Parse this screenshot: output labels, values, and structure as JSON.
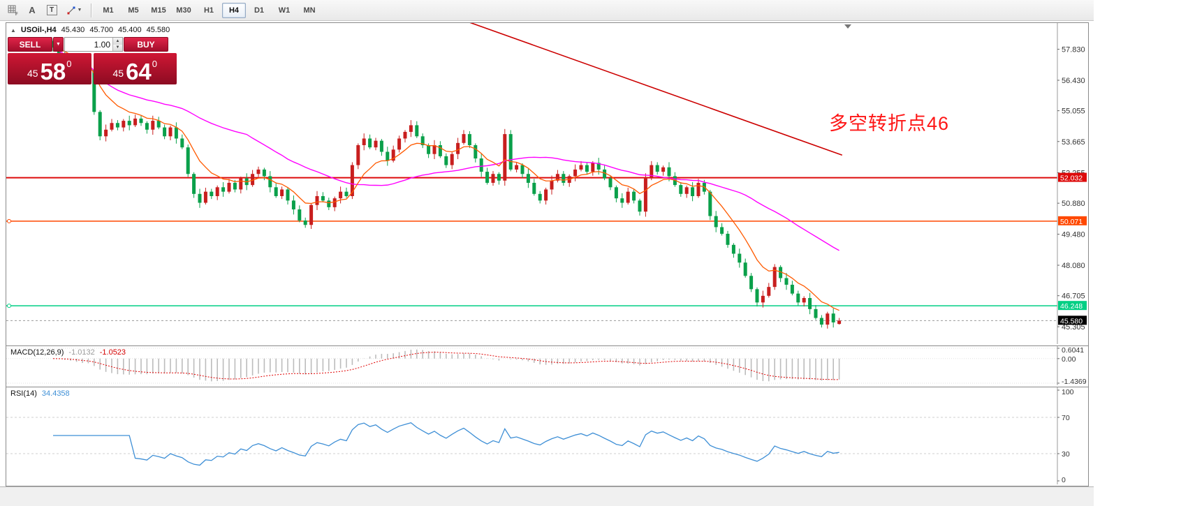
{
  "toolbar": {
    "tools": {
      "a_label": "A",
      "t_label": "T"
    },
    "timeframes": [
      {
        "label": "M1",
        "active": false
      },
      {
        "label": "M5",
        "active": false
      },
      {
        "label": "M15",
        "active": false
      },
      {
        "label": "M30",
        "active": false
      },
      {
        "label": "H1",
        "active": false
      },
      {
        "label": "H4",
        "active": true
      },
      {
        "label": "D1",
        "active": false
      },
      {
        "label": "W1",
        "active": false
      },
      {
        "label": "MN",
        "active": false
      }
    ]
  },
  "trade_panel": {
    "sell_label": "SELL",
    "buy_label": "BUY",
    "volume": "1.00",
    "sell_price": {
      "base": "45",
      "big": "58",
      "sup": "0"
    },
    "buy_price": {
      "base": "45",
      "big": "64",
      "sup": "0"
    }
  },
  "chart_data": {
    "type": "candlestick",
    "header": {
      "symbol": "USOil-,H4",
      "open": "45.430",
      "high": "45.700",
      "low": "45.400",
      "close": "45.580"
    },
    "annotation": {
      "text": "多空转折点46",
      "color": "#fe1616"
    },
    "price_range": [
      44.71,
      58.95
    ],
    "axis_labels": [
      "57.830",
      "56.430",
      "55.055",
      "53.665",
      "52.255",
      "50.880",
      "49.480",
      "48.080",
      "46.705",
      "45.305"
    ],
    "levels": [
      {
        "price": 52.032,
        "label": "52.032",
        "color": "#dd0a0a",
        "width": 2,
        "anchor": false
      },
      {
        "price": 50.071,
        "label": "50.071",
        "color": "#ff4800",
        "width": 1.5,
        "anchor": true
      },
      {
        "price": 46.248,
        "label": "46.248",
        "color": "#00cf84",
        "width": 1.5,
        "anchor": true
      }
    ],
    "current_price": {
      "value": 45.58,
      "label": "45.580",
      "badge_color": "#000000"
    },
    "trendline": {
      "color": "#cc0000",
      "b1": 67.2,
      "p1": 59.4,
      "b2": 134.5,
      "p2": 53.05
    },
    "ma_fast": {
      "color": "#ff5a00",
      "period": 9
    },
    "ma_slow": {
      "color": "#ff00ff",
      "period": 34
    },
    "up_color": "#c81e1e",
    "down_color": "#0aa04a",
    "closes": [
      57.9,
      57.6,
      57.3,
      57.0,
      56.7,
      56.5,
      56.9,
      55.0,
      53.9,
      54.2,
      54.5,
      54.3,
      54.6,
      54.4,
      54.7,
      54.5,
      54.2,
      54.6,
      54.3,
      53.9,
      54.3,
      53.8,
      53.4,
      52.2,
      51.3,
      50.9,
      51.4,
      51.2,
      51.6,
      51.4,
      51.8,
      51.5,
      52.0,
      51.7,
      52.2,
      52.4,
      52.1,
      51.6,
      51.2,
      51.5,
      51.0,
      50.6,
      50.1,
      49.9,
      50.8,
      51.2,
      51.0,
      50.7,
      51.1,
      51.4,
      51.2,
      52.6,
      53.5,
      53.8,
      53.4,
      53.7,
      53.2,
      52.8,
      53.3,
      53.8,
      54.1,
      54.4,
      53.9,
      53.5,
      53.1,
      53.5,
      53.0,
      52.6,
      53.1,
      53.6,
      54.0,
      53.5,
      52.9,
      52.3,
      51.8,
      52.2,
      51.9,
      54.0,
      52.4,
      52.6,
      52.2,
      51.8,
      51.3,
      51.0,
      51.5,
      51.9,
      52.2,
      51.8,
      52.1,
      52.4,
      52.6,
      52.3,
      52.7,
      52.4,
      52.0,
      51.6,
      51.1,
      50.9,
      51.4,
      51.0,
      50.5,
      52.0,
      52.6,
      52.3,
      52.5,
      52.1,
      51.7,
      51.3,
      51.6,
      51.2,
      51.8,
      51.4,
      50.3,
      49.8,
      49.5,
      49.0,
      48.6,
      48.2,
      47.6,
      47.0,
      46.4,
      46.7,
      47.1,
      48.0,
      47.5,
      47.2,
      46.8,
      46.4,
      46.6,
      46.1,
      45.7,
      45.4,
      45.9,
      45.5,
      45.58
    ],
    "last_candle": {
      "o": 45.43,
      "h": 45.7,
      "l": 45.4,
      "c": 45.58
    }
  },
  "macd": {
    "label": "MACD(12,26,9)",
    "value_main": "-1.0132",
    "value_signal": "-1.0523",
    "fast": 12,
    "slow": 26,
    "signal": 9,
    "range": [
      -1.4369,
      0.6041
    ],
    "axis": [
      {
        "v": 0.6041,
        "label": "0.6041"
      },
      {
        "v": 0,
        "label": "0.00"
      },
      {
        "v": -1.4369,
        "label": "-1.4369"
      }
    ],
    "hist_color": "#bcbcbc",
    "signal_color": "#e00000"
  },
  "rsi": {
    "label": "RSI(14)",
    "value": "34.4358",
    "period": 14,
    "line_color": "#3e8fd6",
    "levels": [
      70,
      30
    ],
    "axis": [
      {
        "v": 100,
        "label": "100"
      },
      {
        "v": 70,
        "label": "70"
      },
      {
        "v": 30,
        "label": "30"
      },
      {
        "v": 0,
        "label": "0"
      }
    ]
  }
}
